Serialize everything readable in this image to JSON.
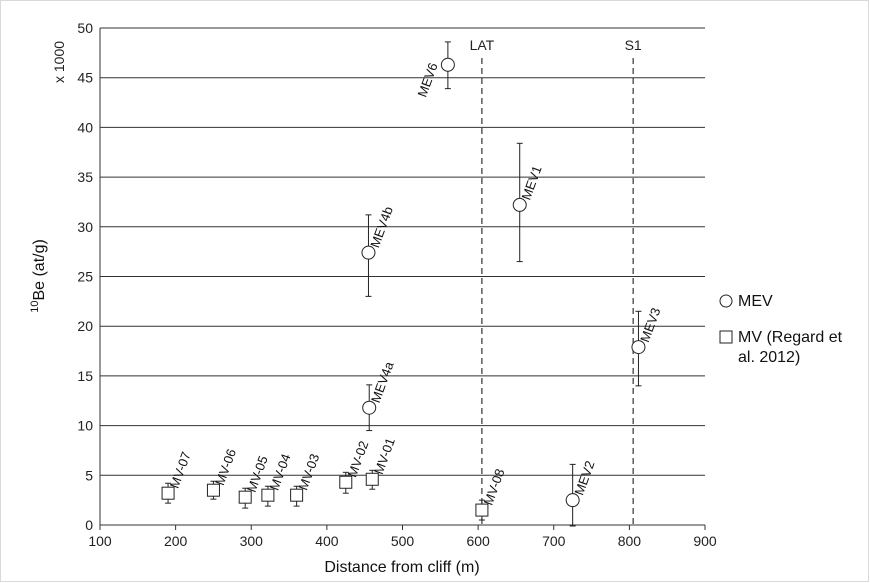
{
  "chart_data": {
    "type": "scatter",
    "xlabel": "Distance from cliff (m)",
    "ylabel_sup": "10",
    "ylabel_main": "Be (at/g)",
    "y_multiplier": "x 1000",
    "xlim": [
      100,
      900
    ],
    "ylim": [
      0,
      50
    ],
    "xticks": [
      100,
      200,
      300,
      400,
      500,
      600,
      700,
      800,
      900
    ],
    "yticks": [
      0,
      5,
      10,
      15,
      20,
      25,
      30,
      35,
      40,
      45,
      50
    ],
    "grid": "horizontal",
    "vlines": [
      {
        "label": "LAT",
        "x": 605
      },
      {
        "label": "S1",
        "x": 805
      }
    ],
    "legend_position": "right",
    "legend": [
      {
        "symbol": "circle",
        "label_lines": [
          "MEV"
        ]
      },
      {
        "symbol": "square",
        "label_lines": [
          "MV (Regard et",
          "al. 2012)"
        ]
      }
    ],
    "series": [
      {
        "name": "MEV",
        "marker": "circle",
        "points": [
          {
            "label": "MEV6",
            "x": 560,
            "y": 46.3,
            "err_low": 43.9,
            "err_high": 48.6
          },
          {
            "label": "MEV1",
            "x": 655,
            "y": 32.2,
            "err_low": 26.5,
            "err_high": 38.4
          },
          {
            "label": "MEV4b",
            "x": 455,
            "y": 27.4,
            "err_low": 23.0,
            "err_high": 31.2
          },
          {
            "label": "MEV3",
            "x": 812,
            "y": 17.9,
            "err_low": 14.0,
            "err_high": 21.5
          },
          {
            "label": "MEV4a",
            "x": 456,
            "y": 11.8,
            "err_low": 9.5,
            "err_high": 14.1
          },
          {
            "label": "MEV2",
            "x": 725,
            "y": 2.5,
            "err_low": -0.1,
            "err_high": 6.1
          }
        ]
      },
      {
        "name": "MV (Regard et al. 2012)",
        "marker": "square",
        "points": [
          {
            "label": "MV-07",
            "x": 190,
            "y": 3.2,
            "err_low": 2.2,
            "err_high": 4.2
          },
          {
            "label": "MV-06",
            "x": 250,
            "y": 3.5,
            "err_low": 2.6,
            "err_high": 4.4
          },
          {
            "label": "MV-05",
            "x": 292,
            "y": 2.8,
            "err_low": 1.7,
            "err_high": 3.7
          },
          {
            "label": "MV-04",
            "x": 322,
            "y": 3.0,
            "err_low": 1.9,
            "err_high": 3.9
          },
          {
            "label": "MV-03",
            "x": 360,
            "y": 3.0,
            "err_low": 1.9,
            "err_high": 3.9
          },
          {
            "label": "MV-02",
            "x": 425,
            "y": 4.3,
            "err_low": 3.2,
            "err_high": 5.3
          },
          {
            "label": "MV-01",
            "x": 460,
            "y": 4.6,
            "err_low": 3.6,
            "err_high": 5.5
          },
          {
            "label": "MV-08",
            "x": 605,
            "y": 1.5,
            "err_low": 0.5,
            "err_high": 2.5
          }
        ]
      }
    ]
  }
}
